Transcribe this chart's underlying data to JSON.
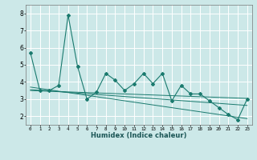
{
  "xlabel": "Humidex (Indice chaleur)",
  "x_values": [
    0,
    1,
    2,
    3,
    4,
    5,
    6,
    7,
    8,
    9,
    10,
    11,
    12,
    13,
    14,
    15,
    16,
    17,
    18,
    19,
    20,
    21,
    22,
    23
  ],
  "main_line": [
    5.7,
    3.5,
    3.5,
    3.8,
    7.9,
    4.9,
    3.0,
    3.4,
    4.5,
    4.1,
    3.5,
    3.9,
    4.5,
    3.9,
    4.5,
    2.9,
    3.8,
    3.3,
    3.3,
    2.9,
    2.5,
    2.1,
    1.8,
    3.0
  ],
  "trend_line1": [
    3.5,
    3.48,
    3.46,
    3.44,
    3.42,
    3.4,
    3.38,
    3.36,
    3.34,
    3.32,
    3.3,
    3.28,
    3.26,
    3.24,
    3.22,
    3.2,
    3.18,
    3.16,
    3.14,
    3.12,
    3.1,
    3.08,
    3.06,
    3.04
  ],
  "trend_line2": [
    3.55,
    3.51,
    3.47,
    3.43,
    3.39,
    3.35,
    3.31,
    3.27,
    3.23,
    3.19,
    3.15,
    3.11,
    3.07,
    3.03,
    2.99,
    2.95,
    2.91,
    2.87,
    2.83,
    2.79,
    2.75,
    2.71,
    2.67,
    2.63
  ],
  "trend_line3": [
    3.7,
    3.62,
    3.54,
    3.46,
    3.38,
    3.3,
    3.22,
    3.14,
    3.06,
    2.98,
    2.9,
    2.82,
    2.74,
    2.66,
    2.58,
    2.5,
    2.42,
    2.34,
    2.26,
    2.18,
    2.1,
    2.02,
    1.94,
    1.86
  ],
  "line_color": "#1a7a6e",
  "background_color": "#cce8e8",
  "grid_color": "#ffffff",
  "ylim": [
    1.5,
    8.5
  ],
  "xlim": [
    -0.5,
    23.5
  ],
  "yticks": [
    2,
    3,
    4,
    5,
    6,
    7,
    8
  ],
  "xtick_labels": [
    "0",
    "1",
    "2",
    "3",
    "4",
    "5",
    "6",
    "7",
    "8",
    "9",
    "10",
    "11",
    "12",
    "13",
    "14",
    "15",
    "16",
    "17",
    "18",
    "19",
    "20",
    "21",
    "22",
    "23"
  ]
}
